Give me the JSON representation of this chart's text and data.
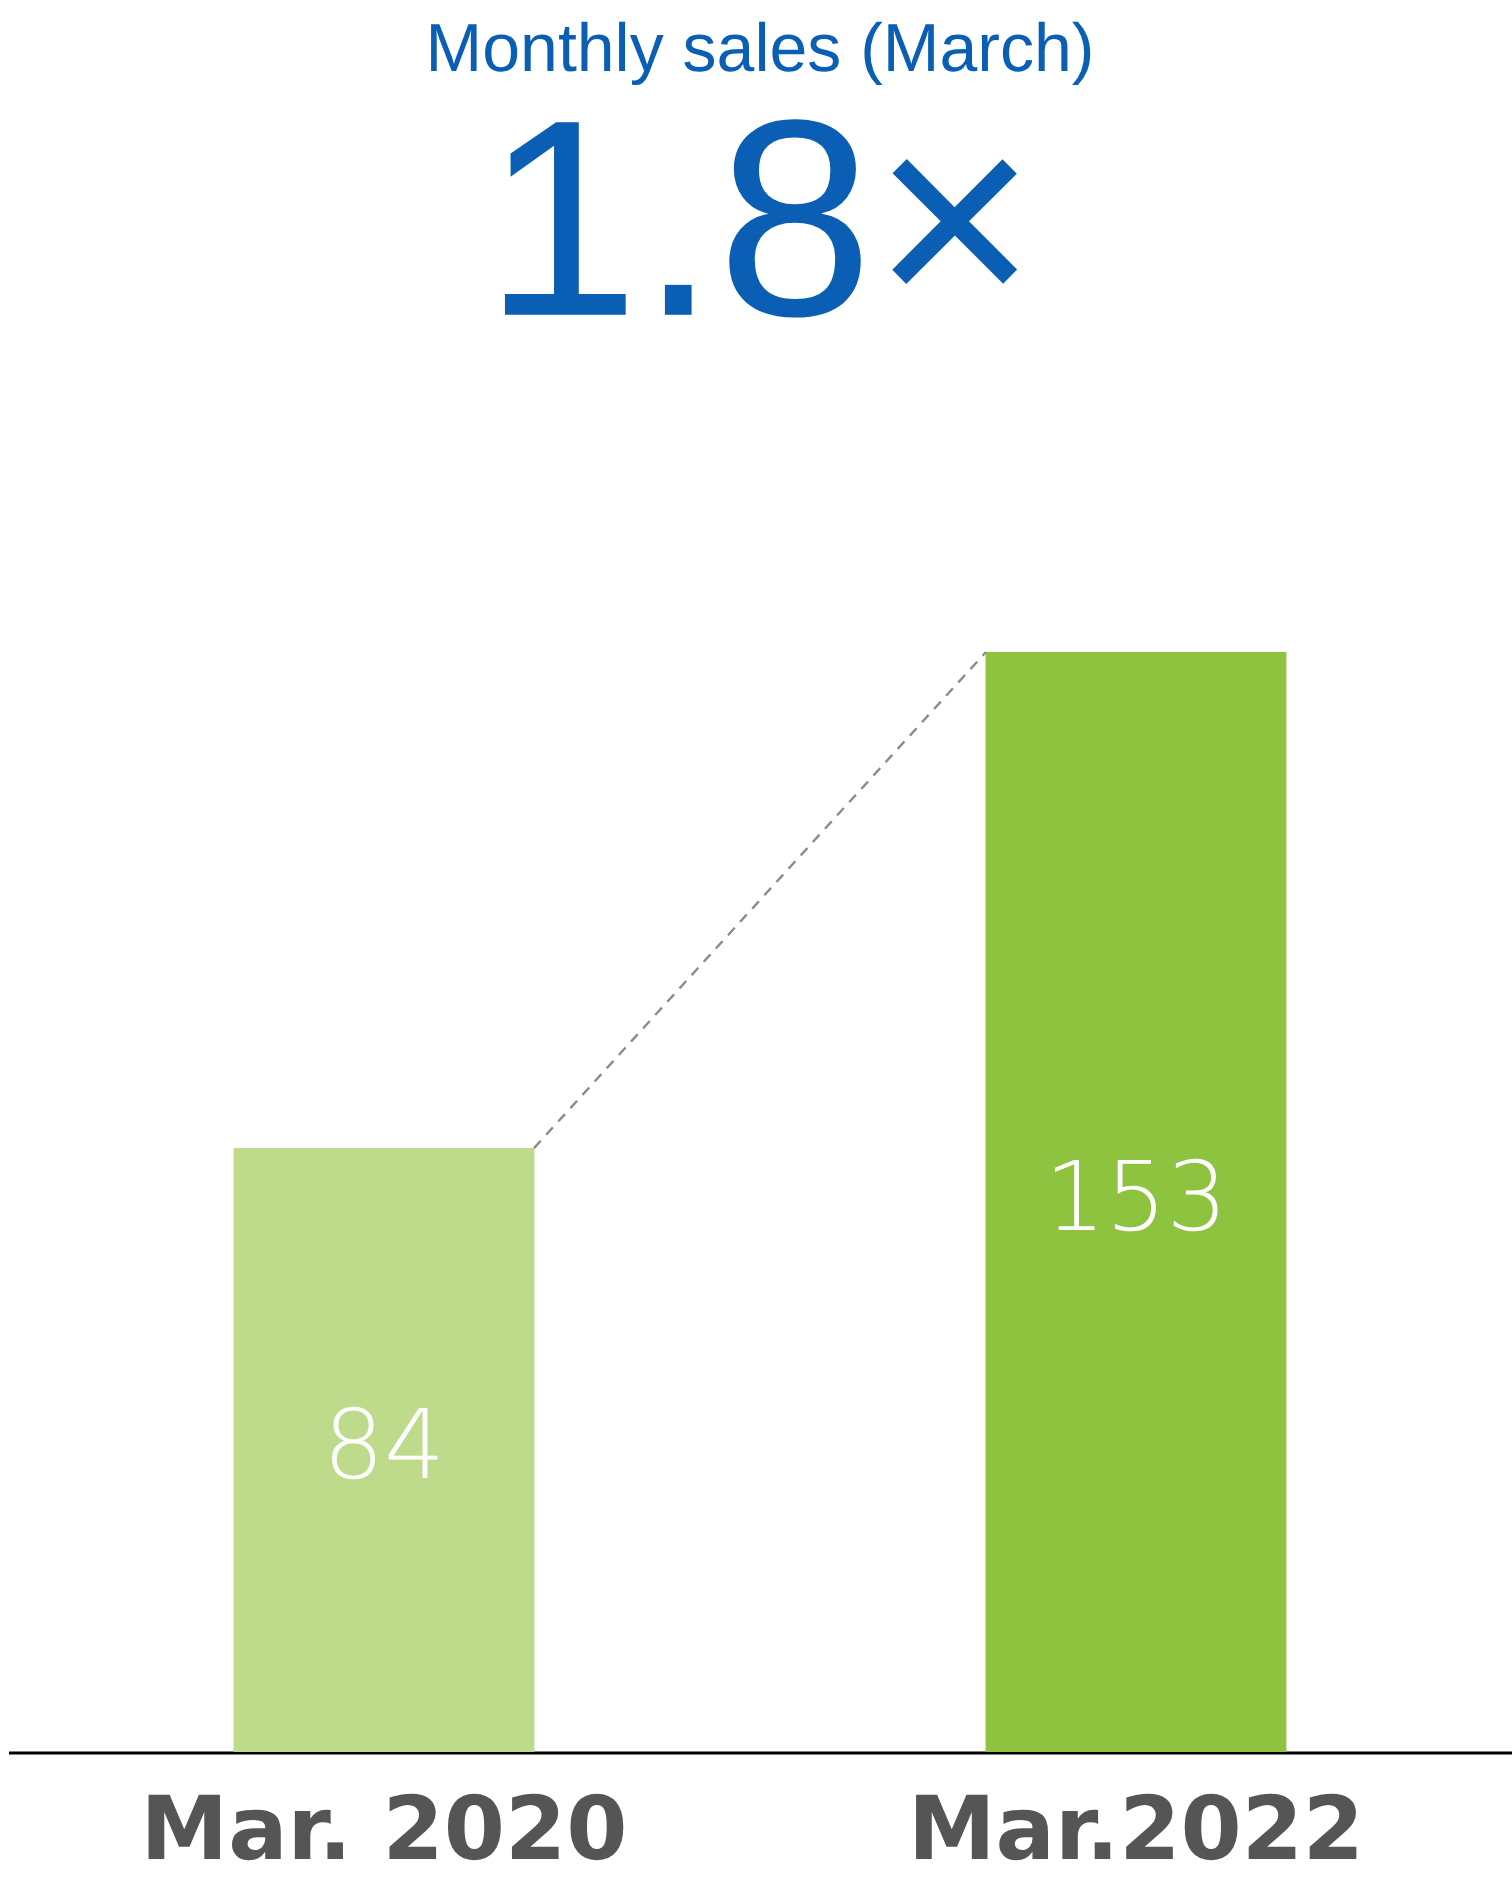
{
  "chart_data": {
    "type": "bar",
    "title": "Monthly sales (March)",
    "subtitle": "1.8×",
    "categories": [
      "Mar. 2020",
      "Mar.2022"
    ],
    "series": [
      {
        "colors": [
          "#bddb8b",
          "#8dc33f"
        ],
        "values": [
          84,
          153
        ]
      }
    ],
    "ylim": [
      0,
      153
    ],
    "data_labels": true,
    "tick_labels": "x"
  }
}
